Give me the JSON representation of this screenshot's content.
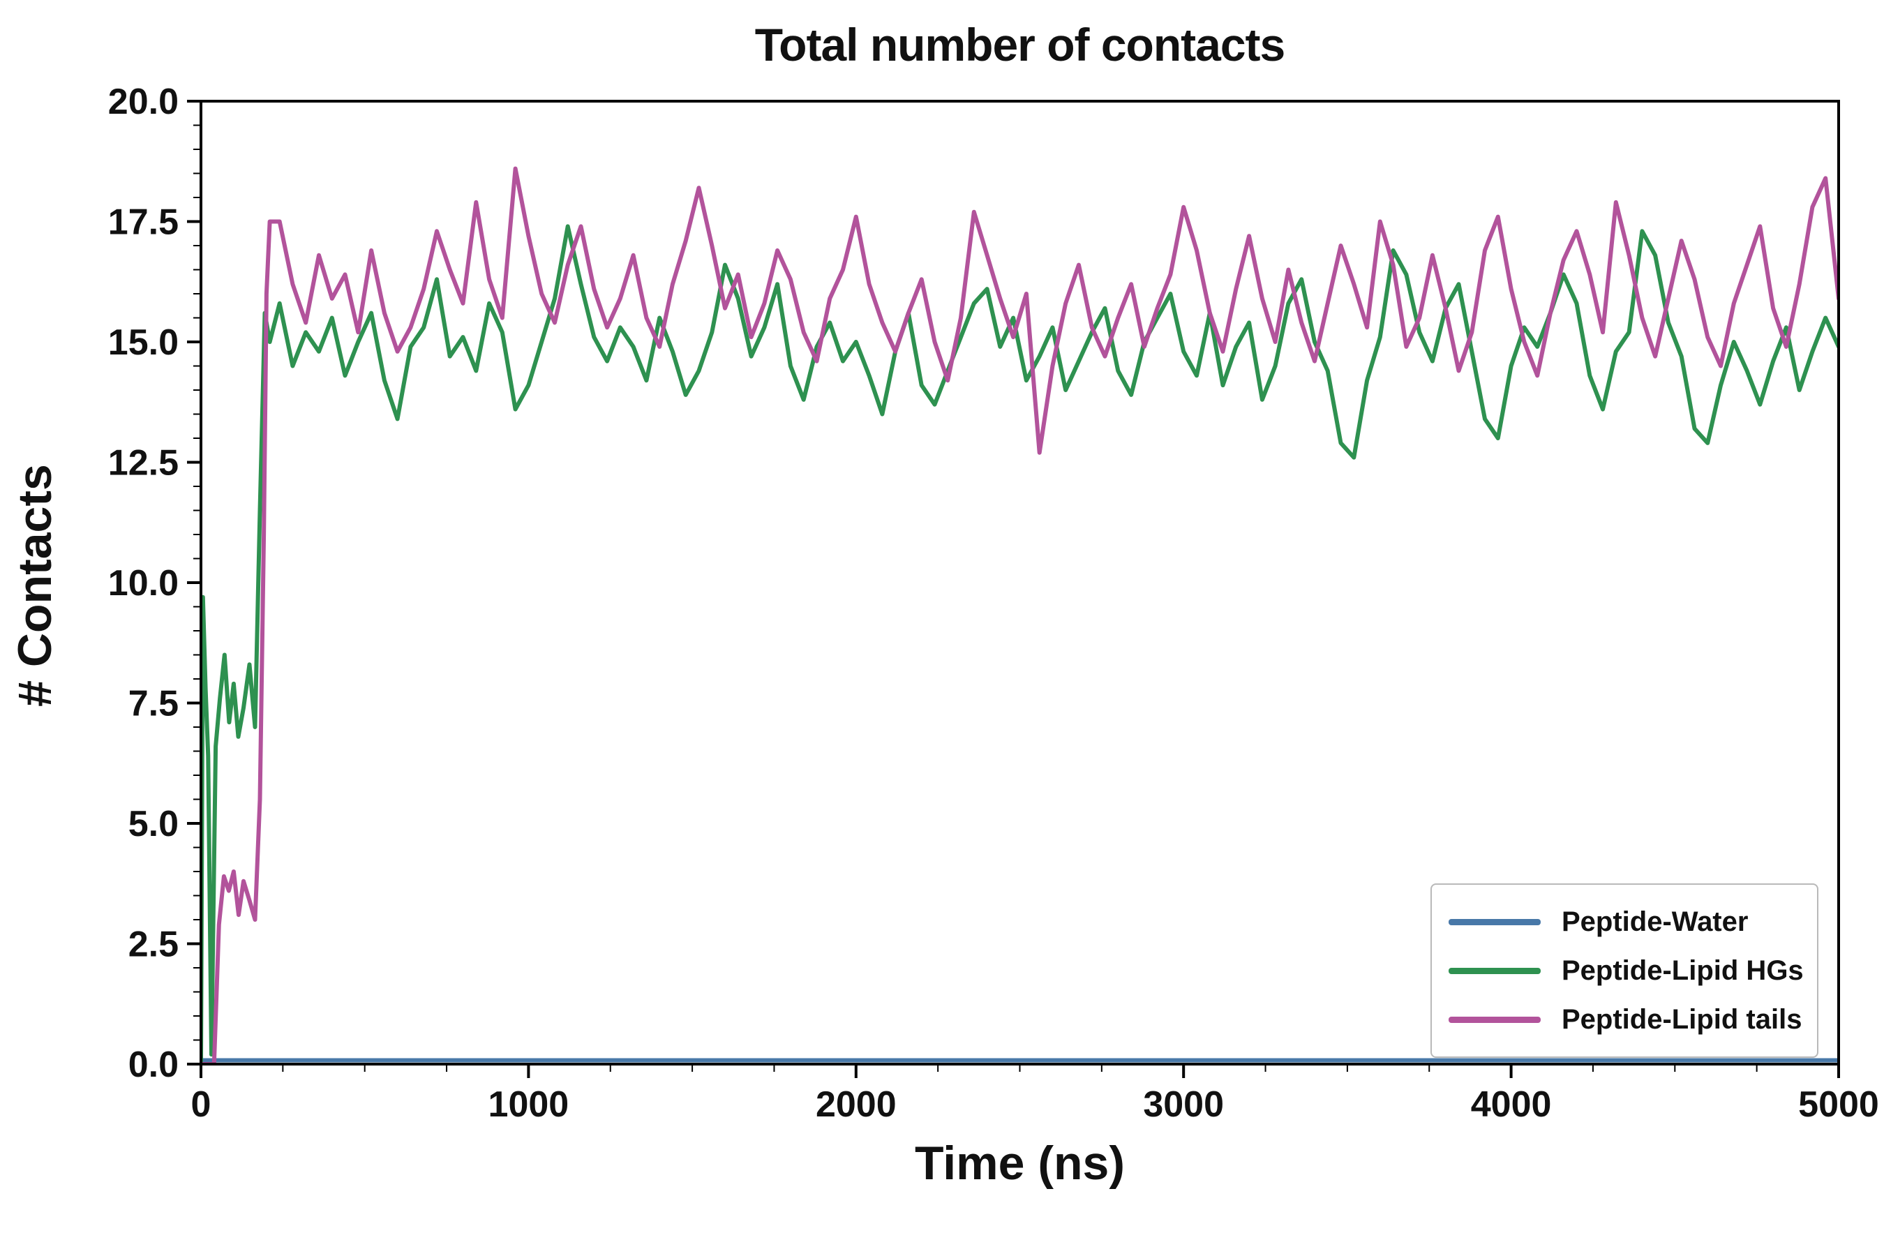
{
  "chart_data": {
    "type": "line",
    "title": "Total number of contacts",
    "xlabel": "Time (ns)",
    "ylabel": "# Contacts",
    "xlim": [
      0,
      5000
    ],
    "ylim": [
      0,
      20
    ],
    "x_ticks": [
      0,
      1000,
      2000,
      3000,
      4000,
      5000
    ],
    "y_ticks": [
      0.0,
      2.5,
      5.0,
      7.5,
      10.0,
      12.5,
      15.0,
      17.5,
      20.0
    ],
    "x_minor_step": 250,
    "y_minor_step": 0.5,
    "grid": false,
    "legend_position": "lower right",
    "background": "#ffffff",
    "axis_color": "#000000",
    "series": [
      {
        "name": "Peptide-Water",
        "color": "#4878a8",
        "x0": 0,
        "dx": 5000,
        "y": [
          0.08,
          0.08
        ]
      },
      {
        "name": "Peptide-Lipid HGs",
        "color": "#2e9150",
        "head": [
          [
            0,
            0.0
          ],
          [
            6,
            9.7
          ],
          [
            14,
            7.8
          ],
          [
            22,
            6.4
          ],
          [
            32,
            0.2
          ],
          [
            45,
            6.6
          ],
          [
            58,
            7.6
          ],
          [
            72,
            8.5
          ],
          [
            86,
            7.1
          ],
          [
            100,
            7.9
          ],
          [
            114,
            6.8
          ],
          [
            130,
            7.4
          ],
          [
            148,
            8.3
          ],
          [
            165,
            7.0
          ],
          [
            180,
            11.5
          ],
          [
            195,
            15.6
          ],
          [
            210,
            15.0
          ]
        ],
        "x0": 240,
        "dx": 40,
        "y": [
          15.8,
          14.5,
          15.2,
          14.8,
          15.5,
          14.3,
          15.0,
          15.6,
          14.2,
          13.4,
          14.9,
          15.3,
          16.3,
          14.7,
          15.1,
          14.4,
          15.8,
          15.2,
          13.6,
          14.1,
          15.0,
          15.9,
          17.4,
          16.2,
          15.1,
          14.6,
          15.3,
          14.9,
          14.2,
          15.5,
          14.8,
          13.9,
          14.4,
          15.2,
          16.6,
          15.9,
          14.7,
          15.3,
          16.2,
          14.5,
          13.8,
          14.9,
          15.4,
          14.6,
          15.0,
          14.3,
          13.5,
          14.8,
          15.6,
          14.1,
          13.7,
          14.4,
          15.1,
          15.8,
          16.1,
          14.9,
          15.5,
          14.2,
          14.7,
          15.3,
          14.0,
          14.6,
          15.2,
          15.7,
          14.4,
          13.9,
          15.0,
          15.5,
          16.0,
          14.8,
          14.3,
          15.6,
          14.1,
          14.9,
          15.4,
          13.8,
          14.5,
          15.8,
          16.3,
          15.0,
          14.4,
          12.9,
          12.6,
          14.2,
          15.1,
          16.9,
          16.4,
          15.2,
          14.6,
          15.7,
          16.2,
          14.8,
          13.4,
          13.0,
          14.5,
          15.3,
          14.9,
          15.6,
          16.4,
          15.8,
          14.3,
          13.6,
          14.8,
          15.2,
          17.3,
          16.8,
          15.4,
          14.7,
          13.2,
          12.9,
          14.1,
          15.0,
          14.4,
          13.7,
          14.6,
          15.3,
          14.0,
          14.8,
          15.5,
          14.9
        ]
      },
      {
        "name": "Peptide-Lipid tails",
        "color": "#b2539b",
        "head": [
          [
            0,
            0.0
          ],
          [
            40,
            0.0
          ],
          [
            55,
            2.9
          ],
          [
            70,
            3.9
          ],
          [
            85,
            3.6
          ],
          [
            100,
            4.0
          ],
          [
            115,
            3.1
          ],
          [
            130,
            3.8
          ],
          [
            148,
            3.4
          ],
          [
            165,
            3.0
          ],
          [
            180,
            5.5
          ],
          [
            192,
            11.0
          ],
          [
            200,
            16.0
          ],
          [
            210,
            17.5
          ]
        ],
        "x0": 240,
        "dx": 40,
        "y": [
          17.5,
          16.2,
          15.4,
          16.8,
          15.9,
          16.4,
          15.2,
          16.9,
          15.6,
          14.8,
          15.3,
          16.1,
          17.3,
          16.5,
          15.8,
          17.9,
          16.3,
          15.5,
          18.6,
          17.2,
          16.0,
          15.4,
          16.6,
          17.4,
          16.1,
          15.3,
          15.9,
          16.8,
          15.5,
          14.9,
          16.2,
          17.1,
          18.2,
          17.0,
          15.7,
          16.4,
          15.1,
          15.8,
          16.9,
          16.3,
          15.2,
          14.6,
          15.9,
          16.5,
          17.6,
          16.2,
          15.4,
          14.8,
          15.6,
          16.3,
          15.0,
          14.2,
          15.5,
          17.7,
          16.8,
          15.9,
          15.1,
          16.0,
          12.7,
          14.5,
          15.8,
          16.6,
          15.3,
          14.7,
          15.5,
          16.2,
          14.9,
          15.7,
          16.4,
          17.8,
          16.9,
          15.6,
          14.8,
          16.1,
          17.2,
          15.9,
          15.0,
          16.5,
          15.4,
          14.6,
          15.8,
          17.0,
          16.2,
          15.3,
          17.5,
          16.6,
          14.9,
          15.5,
          16.8,
          15.7,
          14.4,
          15.2,
          16.9,
          17.6,
          16.1,
          15.0,
          14.3,
          15.6,
          16.7,
          17.3,
          16.4,
          15.2,
          17.9,
          16.8,
          15.5,
          14.7,
          15.9,
          17.1,
          16.3,
          15.1,
          14.5,
          15.8,
          16.6,
          17.4,
          15.7,
          14.9,
          16.2,
          17.8,
          18.4,
          15.9
        ]
      }
    ]
  }
}
